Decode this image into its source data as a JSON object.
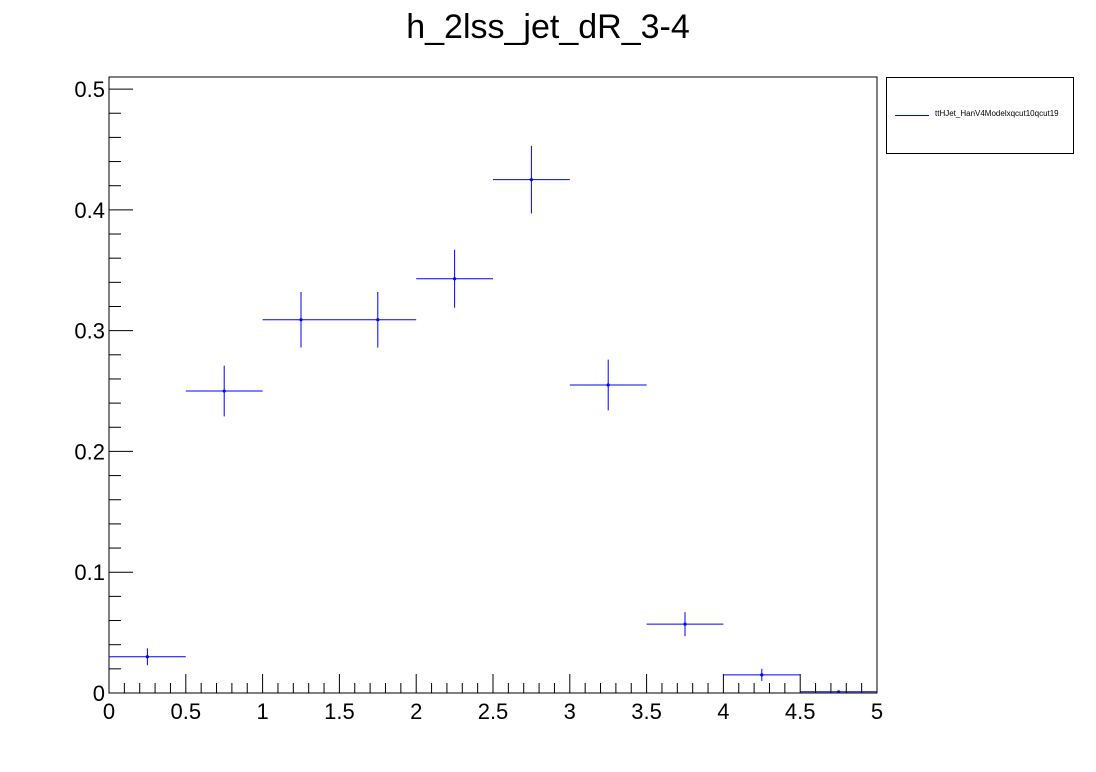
{
  "chart_data": {
    "type": "scatter",
    "title": "h_2lss_jet_dR_3-4",
    "xlabel": "",
    "ylabel": "",
    "xlim": [
      0,
      5
    ],
    "ylim": [
      0,
      0.51
    ],
    "x_ticks": [
      "0",
      "0.5",
      "1",
      "1.5",
      "2",
      "2.5",
      "3",
      "3.5",
      "4",
      "4.5",
      "5"
    ],
    "y_ticks": [
      "0",
      "0.1",
      "0.2",
      "0.3",
      "0.4",
      "0.5"
    ],
    "grid": false,
    "legend_position": "top-right, outside plot",
    "color": "#0000ff",
    "series": [
      {
        "name": "ttHJet_HanV4Modelxqcut10qcut19",
        "bins": [
          {
            "x_low": 0.0,
            "x_high": 0.5,
            "x": 0.25,
            "y": 0.03,
            "err": 0.007
          },
          {
            "x_low": 0.5,
            "x_high": 1.0,
            "x": 0.75,
            "y": 0.25,
            "err": 0.021
          },
          {
            "x_low": 1.0,
            "x_high": 1.5,
            "x": 1.25,
            "y": 0.309,
            "err": 0.023
          },
          {
            "x_low": 1.5,
            "x_high": 2.0,
            "x": 1.75,
            "y": 0.309,
            "err": 0.023
          },
          {
            "x_low": 2.0,
            "x_high": 2.5,
            "x": 2.25,
            "y": 0.343,
            "err": 0.024
          },
          {
            "x_low": 2.5,
            "x_high": 3.0,
            "x": 2.75,
            "y": 0.425,
            "err": 0.028
          },
          {
            "x_low": 3.0,
            "x_high": 3.5,
            "x": 3.25,
            "y": 0.255,
            "err": 0.021
          },
          {
            "x_low": 3.5,
            "x_high": 4.0,
            "x": 3.75,
            "y": 0.057,
            "err": 0.01
          },
          {
            "x_low": 4.0,
            "x_high": 4.5,
            "x": 4.25,
            "y": 0.015,
            "err": 0.005
          },
          {
            "x_low": 4.5,
            "x_high": 5.0,
            "x": 4.75,
            "y": 0.001,
            "err": 0.001
          }
        ]
      }
    ]
  }
}
